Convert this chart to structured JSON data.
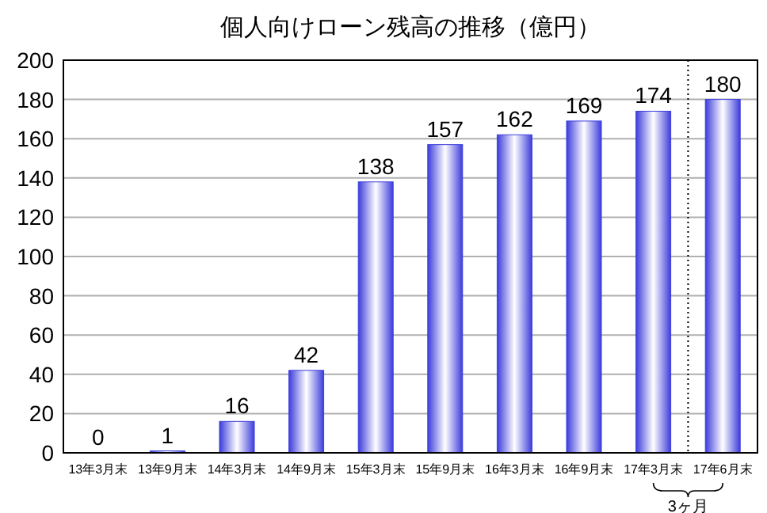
{
  "chart_data": {
    "type": "bar",
    "title": "個人向けローン残高の推移（億円）",
    "categories": [
      "13年3月末",
      "13年9月末",
      "14年3月末",
      "14年9月末",
      "15年3月末",
      "15年9月末",
      "16年3月末",
      "16年9月末",
      "17年3月末",
      "17年6月末"
    ],
    "values": [
      0,
      1,
      16,
      42,
      138,
      157,
      162,
      169,
      174,
      180
    ],
    "color": "#3c3cdc",
    "ylim": [
      0,
      200
    ],
    "yticks": [
      0,
      20,
      40,
      60,
      80,
      100,
      120,
      140,
      160,
      180,
      200
    ],
    "grid": "y",
    "data_labels": true,
    "ref_lines": [
      {
        "axis": "x",
        "value": "17年6月末",
        "line_style": "dotted",
        "color": "#000000"
      }
    ],
    "annotations": [
      "3ヶ月"
    ]
  }
}
